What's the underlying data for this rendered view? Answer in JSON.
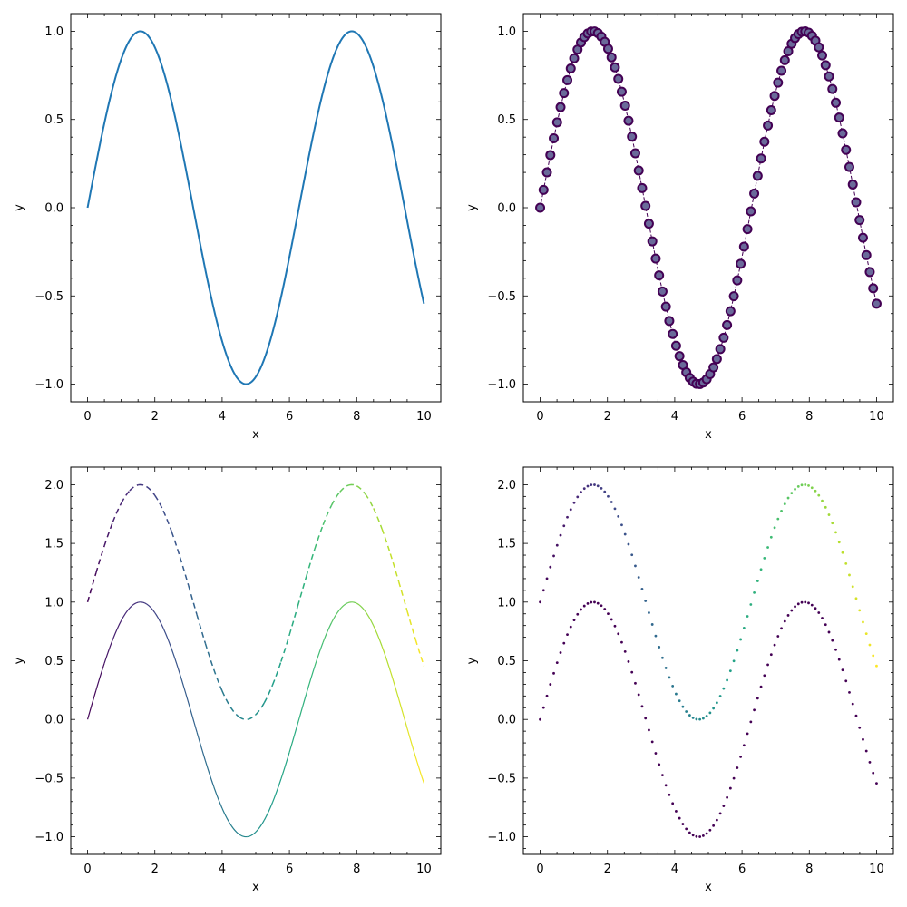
{
  "chart_data": [
    {
      "type": "line",
      "panel": "top-left",
      "xlabel": "x",
      "ylabel": "y",
      "xlim": [
        -0.5,
        10.5
      ],
      "ylim": [
        -1.1,
        1.1
      ],
      "xticks": [
        0,
        2,
        4,
        6,
        8,
        10
      ],
      "yticks": [
        -1.0,
        -0.5,
        0.0,
        0.5,
        1.0
      ],
      "tick_labels": {
        "x": [
          "0",
          "2",
          "4",
          "6",
          "8",
          "10"
        ],
        "y": [
          "−1.0",
          "−0.5",
          "0.0",
          "0.5",
          "1.0"
        ]
      },
      "grid": false,
      "ticks_direction": "in",
      "series": [
        {
          "function": "sin(x)",
          "x_range": [
            0,
            10
          ],
          "style": "solid",
          "color": "#1f77b4"
        }
      ]
    },
    {
      "type": "line",
      "panel": "top-right",
      "xlabel": "x",
      "ylabel": "y",
      "xlim": [
        -0.5,
        10.5
      ],
      "ylim": [
        -1.1,
        1.1
      ],
      "xticks": [
        0,
        2,
        4,
        6,
        8,
        10
      ],
      "yticks": [
        -1.0,
        -0.5,
        0.0,
        0.5,
        1.0
      ],
      "tick_labels": {
        "x": [
          "0",
          "2",
          "4",
          "6",
          "8",
          "10"
        ],
        "y": [
          "−1.0",
          "−0.5",
          "0.0",
          "0.5",
          "1.0"
        ]
      },
      "grid": false,
      "ticks_direction": "in",
      "series": [
        {
          "function": "sin(x)",
          "x_range": [
            0,
            10
          ],
          "points": 100,
          "style": "dashed-with-circle-markers",
          "color": "#440154",
          "marker_fill": "#6a6a9a"
        }
      ]
    },
    {
      "type": "line",
      "panel": "bottom-left",
      "xlabel": "x",
      "ylabel": "y",
      "xlim": [
        -0.5,
        10.5
      ],
      "ylim": [
        -1.15,
        2.15
      ],
      "xticks": [
        0,
        2,
        4,
        6,
        8,
        10
      ],
      "yticks": [
        -1.0,
        -0.5,
        0.0,
        0.5,
        1.0,
        1.5,
        2.0
      ],
      "tick_labels": {
        "x": [
          "0",
          "2",
          "4",
          "6",
          "8",
          "10"
        ],
        "y": [
          "−1.0",
          "−0.5",
          "0.0",
          "0.5",
          "1.0",
          "1.5",
          "2.0"
        ]
      },
      "grid": false,
      "ticks_direction": "in",
      "colormap": "viridis",
      "series": [
        {
          "function": "sin(x)",
          "x_range": [
            0,
            10
          ],
          "style": "solid",
          "color_by": "x"
        },
        {
          "function": "sin(x) + 1",
          "x_range": [
            0,
            10
          ],
          "style": "dashed",
          "color_by": "x"
        }
      ]
    },
    {
      "type": "scatter",
      "panel": "bottom-right",
      "xlabel": "x",
      "ylabel": "y",
      "xlim": [
        -0.5,
        10.5
      ],
      "ylim": [
        -1.15,
        2.15
      ],
      "xticks": [
        0,
        2,
        4,
        6,
        8,
        10
      ],
      "yticks": [
        -1.0,
        -0.5,
        0.0,
        0.5,
        1.0,
        1.5,
        2.0
      ],
      "tick_labels": {
        "x": [
          "0",
          "2",
          "4",
          "6",
          "8",
          "10"
        ],
        "y": [
          "−1.0",
          "−0.5",
          "0.0",
          "0.5",
          "1.0",
          "1.5",
          "2.0"
        ]
      },
      "grid": false,
      "ticks_direction": "in",
      "colormap": "viridis",
      "series": [
        {
          "function": "sin(x)",
          "x_range": [
            0,
            10
          ],
          "points": 100,
          "style": "dots",
          "color": "#440154"
        },
        {
          "function": "sin(x) + 1",
          "x_range": [
            0,
            10
          ],
          "points": 100,
          "style": "dots",
          "color_by": "x"
        }
      ]
    }
  ]
}
